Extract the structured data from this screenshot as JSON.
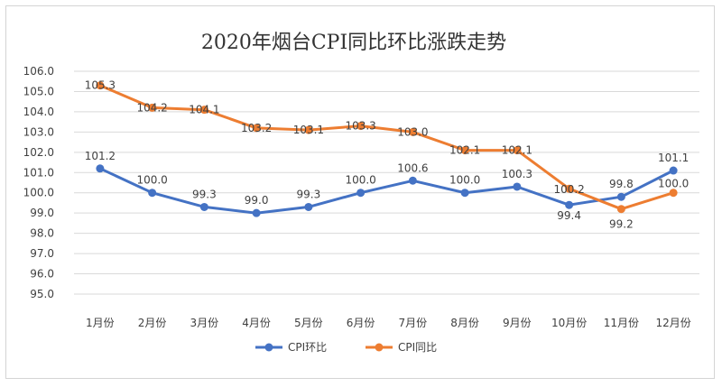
{
  "chart_data": {
    "type": "line",
    "title": "2020年烟台CPI同比环比涨跌走势",
    "categories": [
      "1月份",
      "2月份",
      "3月份",
      "4月份",
      "5月份",
      "6月份",
      "7月份",
      "8月份",
      "9月份",
      "10月份",
      "11月份",
      "12月份"
    ],
    "ylim": [
      95.0,
      106.0
    ],
    "yticks": [
      "95.0",
      "96.0",
      "97.0",
      "98.0",
      "99.0",
      "100.0",
      "101.0",
      "102.0",
      "103.0",
      "104.0",
      "105.0",
      "106.0"
    ],
    "grid": true,
    "legend_position": "bottom",
    "series": [
      {
        "name": "CPI环比",
        "color": "#4472C4",
        "values": [
          101.2,
          100.0,
          99.3,
          99.0,
          99.3,
          100.0,
          100.6,
          100.0,
          100.3,
          99.4,
          99.8,
          101.1
        ],
        "labels": [
          "101.2",
          "100.0",
          "99.3",
          "99.0",
          "99.3",
          "100.0",
          "100.6",
          "100.0",
          "100.3",
          "99.4",
          "99.8",
          "101.1"
        ]
      },
      {
        "name": "CPI同比",
        "color": "#ED7D31",
        "values": [
          105.3,
          104.2,
          104.1,
          103.2,
          103.1,
          103.3,
          103.0,
          102.1,
          102.1,
          100.2,
          99.2,
          100.0
        ],
        "labels": [
          "105.3",
          "104.2",
          "104.1",
          "103.2",
          "103.1",
          "103.3",
          "103.0",
          "102.1",
          "102.1",
          "100.2",
          "99.2",
          "100.0"
        ]
      }
    ]
  }
}
